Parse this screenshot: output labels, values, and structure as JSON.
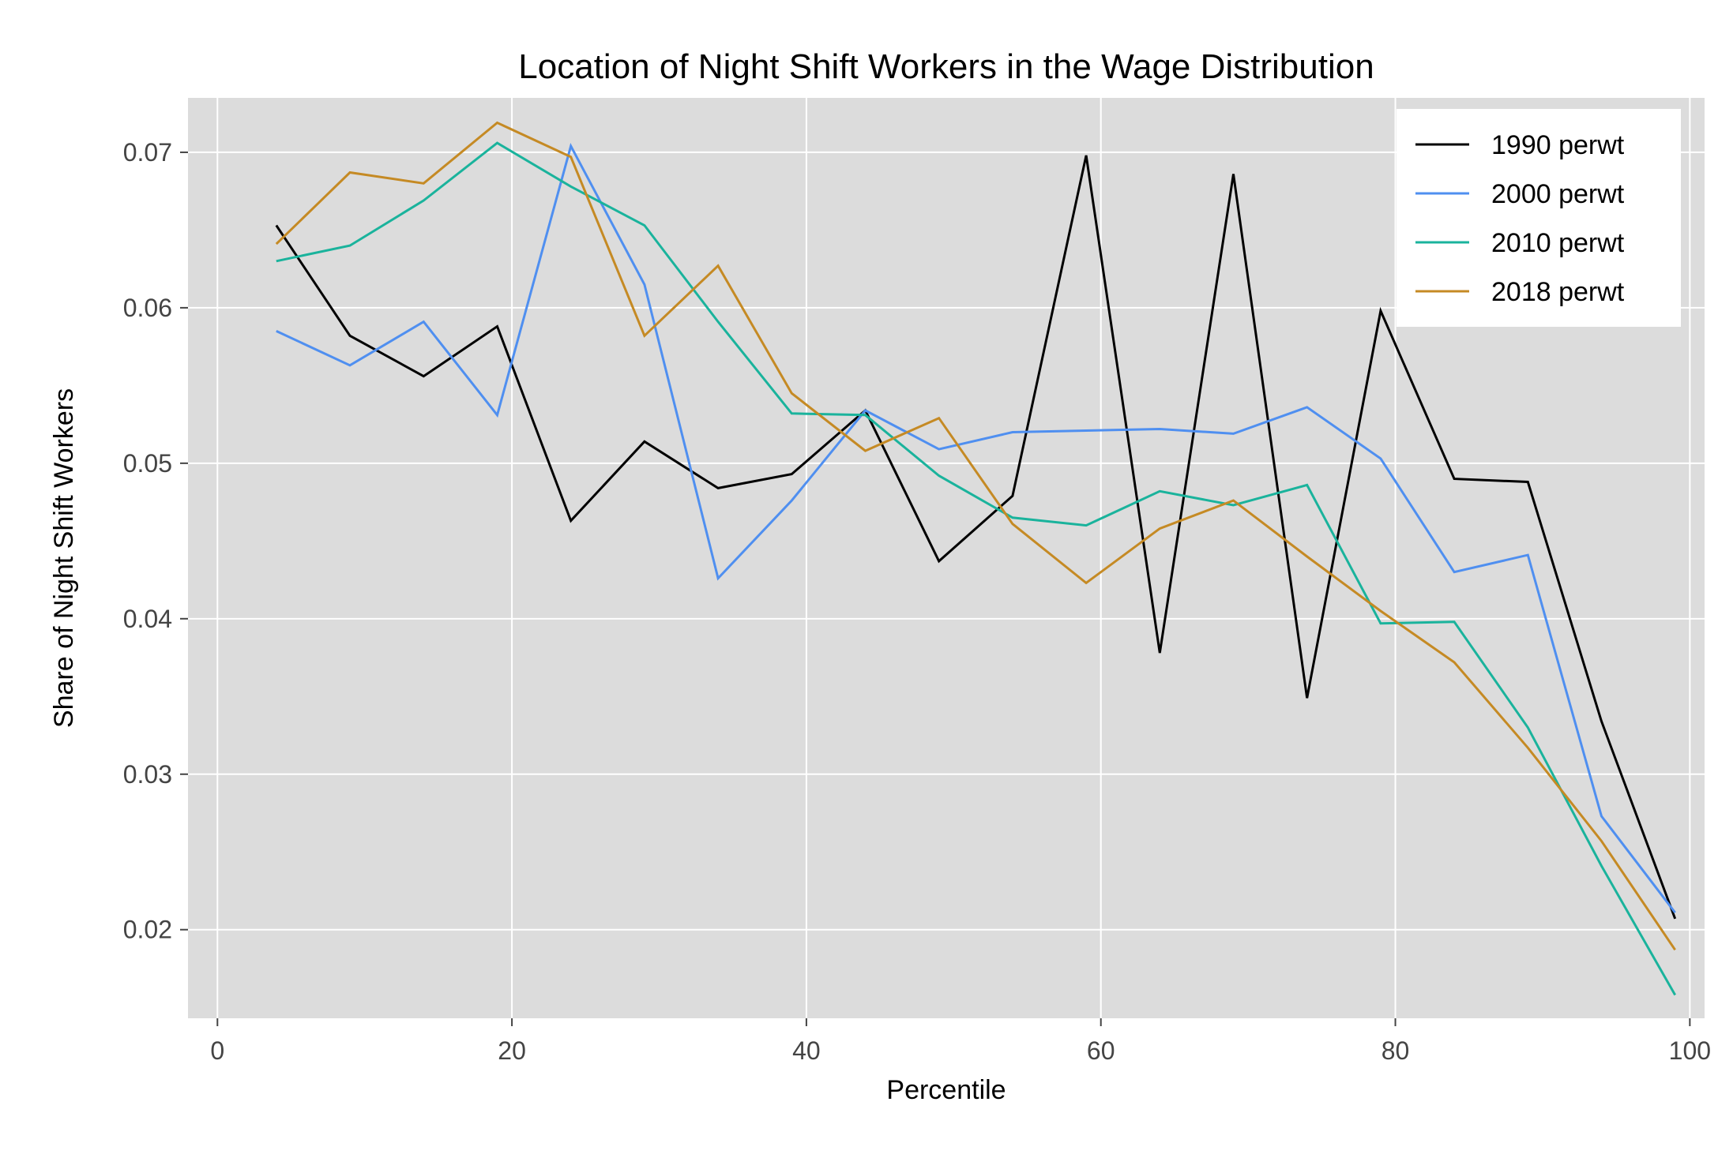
{
  "chart_data": {
    "type": "line",
    "title": "Location of Night Shift Workers in the Wage Distribution",
    "xlabel": "Percentile",
    "ylabel": "Share of Night Shift Workers",
    "xlim": [
      -2,
      101
    ],
    "ylim": [
      0.0143,
      0.0735
    ],
    "xticks": [
      0,
      20,
      40,
      60,
      80,
      100
    ],
    "xtick_labels": [
      "0",
      "20",
      "40",
      "60",
      "80",
      "100"
    ],
    "yticks": [
      0.02,
      0.03,
      0.04,
      0.05,
      0.06,
      0.07
    ],
    "ytick_labels": [
      "0.02",
      "0.03",
      "0.04",
      "0.05",
      "0.06",
      "0.07"
    ],
    "grid": true,
    "background": "#dcdcdc",
    "legend_position": "top-right",
    "x": [
      4,
      9,
      14,
      19,
      24,
      29,
      34,
      39,
      44,
      49,
      54,
      59,
      64,
      69,
      74,
      79,
      84,
      89,
      94,
      99
    ],
    "series": [
      {
        "name": "1990 perwt",
        "color": "#000000",
        "values": [
          0.0653,
          0.0582,
          0.0556,
          0.0588,
          0.0463,
          0.0514,
          0.0484,
          0.0493,
          0.0534,
          0.0437,
          0.0479,
          0.0698,
          0.0378,
          0.0686,
          0.0349,
          0.0598,
          0.049,
          0.0488,
          0.0334,
          0.0207
        ]
      },
      {
        "name": "2000 perwt",
        "color": "#4f8ff0",
        "values": [
          0.0585,
          0.0563,
          0.0591,
          0.0531,
          0.0704,
          0.0615,
          0.0426,
          0.0476,
          0.0534,
          0.0509,
          0.052,
          0.0521,
          0.0522,
          0.0519,
          0.0536,
          0.0503,
          0.043,
          0.0441,
          0.0273,
          0.0211
        ]
      },
      {
        "name": "2010 perwt",
        "color": "#1ab39c",
        "values": [
          0.063,
          0.064,
          0.0669,
          0.0706,
          0.0678,
          0.0653,
          0.0591,
          0.0532,
          0.0531,
          0.0492,
          0.0465,
          0.046,
          0.0482,
          0.0473,
          0.0486,
          0.0397,
          0.0398,
          0.033,
          0.0241,
          0.0158
        ]
      },
      {
        "name": "2018 perwt",
        "color": "#c58a24",
        "values": [
          0.0641,
          0.0687,
          0.068,
          0.0719,
          0.0697,
          0.0582,
          0.0627,
          0.0545,
          0.0508,
          0.0529,
          0.0461,
          0.0423,
          0.0458,
          0.0476,
          0.044,
          0.0405,
          0.0372,
          0.0317,
          0.0257,
          0.0187
        ]
      }
    ]
  }
}
